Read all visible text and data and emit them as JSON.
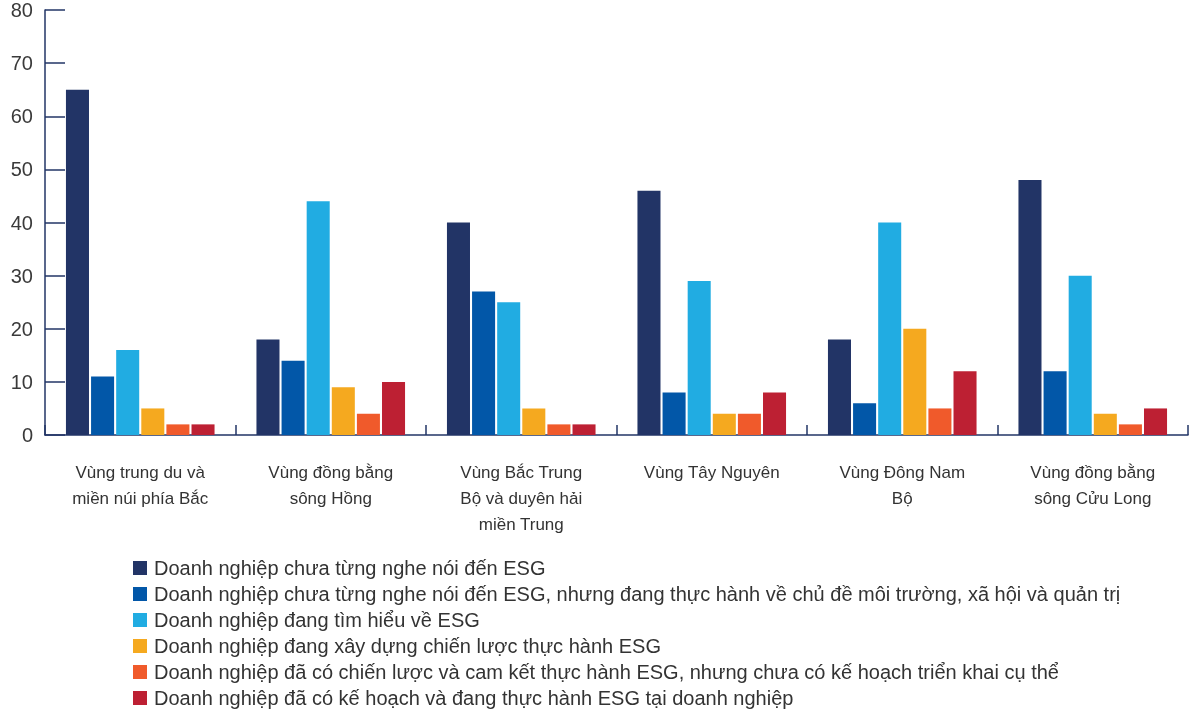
{
  "chart_data": {
    "type": "bar",
    "categories": [
      "Vùng trung du và miền núi phía Bắc",
      "Vùng đồng bằng sông Hồng",
      "Vùng Bắc Trung Bộ và duyên hải miền Trung",
      "Vùng Tây Nguyên",
      "Vùng Đông Nam Bộ",
      "Vùng đồng bằng sông Cửu Long"
    ],
    "series": [
      {
        "name": "Doanh nghiệp chưa từng nghe nói đến ESG",
        "color": "#223466",
        "values": [
          65,
          18,
          40,
          46,
          18,
          48
        ]
      },
      {
        "name": "Doanh nghiệp chưa từng nghe nói đến ESG, nhưng đang thực hành về chủ đề môi trường, xã hội và quản trị",
        "color": "#0257a8",
        "values": [
          11,
          14,
          27,
          8,
          6,
          12
        ]
      },
      {
        "name": "Doanh nghiệp đang tìm hiểu về ESG",
        "color": "#21ace2",
        "values": [
          16,
          44,
          25,
          29,
          40,
          30
        ]
      },
      {
        "name": "Doanh nghiệp đang xây dựng chiến lược thực hành ESG",
        "color": "#f5a91f",
        "values": [
          5,
          9,
          5,
          4,
          20,
          4
        ]
      },
      {
        "name": "Doanh nghiệp đã có chiến lược và cam kết thực hành ESG, nhưng chưa có kế hoạch triển khai cụ thể",
        "color": "#f05a2b",
        "values": [
          2,
          4,
          2,
          4,
          5,
          2
        ]
      },
      {
        "name": "Doanh nghiệp đã có kế hoạch và đang thực hành ESG tại doanh nghiệp",
        "color": "#bd2033",
        "values": [
          2,
          10,
          2,
          8,
          12,
          5
        ]
      }
    ],
    "ylim": [
      0,
      80
    ],
    "yticks": [
      0,
      10,
      20,
      30,
      40,
      50,
      60,
      70,
      80
    ],
    "legend": "bottom"
  }
}
